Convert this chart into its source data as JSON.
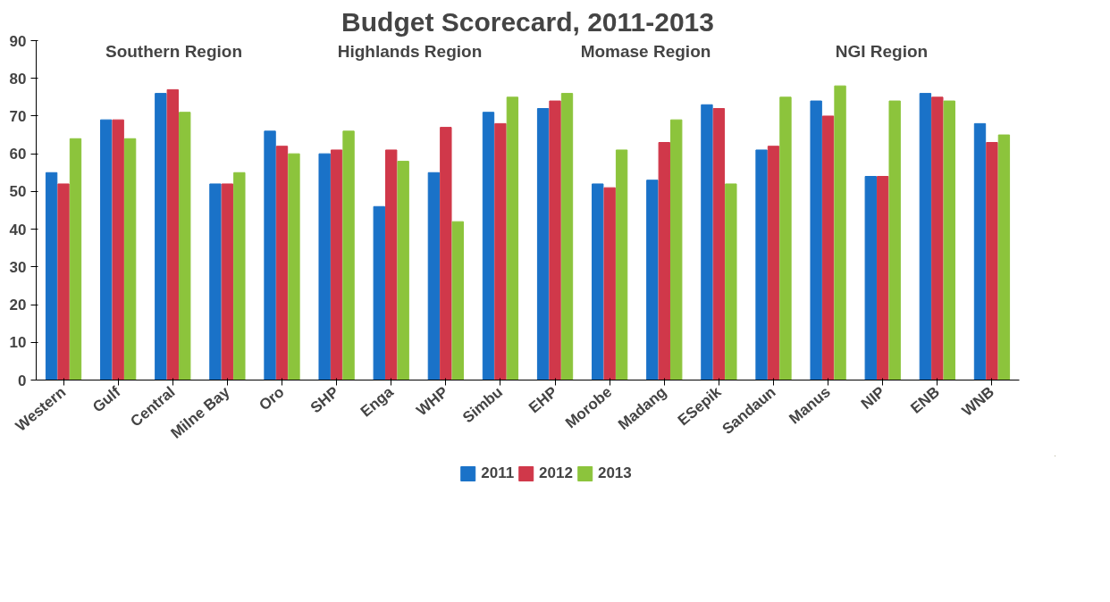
{
  "chart_data": {
    "type": "bar",
    "title": "Budget Scorecard, 2011-2013",
    "categories": [
      "Western",
      "Gulf",
      "Central",
      "Milne Bay",
      "Oro",
      "SHP",
      "Enga",
      "WHP",
      "Simbu",
      "EHP",
      "Morobe",
      "Madang",
      "ESepik",
      "Sandaun",
      "Manus",
      "NIP",
      "ENB",
      "WNB"
    ],
    "series": [
      {
        "name": "2011",
        "color": "#1a72c8",
        "values": [
          55,
          69,
          76,
          52,
          66,
          60,
          46,
          55,
          71,
          72,
          52,
          53,
          73,
          61,
          74,
          54,
          76,
          68
        ]
      },
      {
        "name": "2012",
        "color": "#d0384a",
        "values": [
          52,
          69,
          77,
          52,
          62,
          61,
          61,
          67,
          68,
          74,
          51,
          63,
          72,
          62,
          70,
          54,
          75,
          63
        ]
      },
      {
        "name": "2013",
        "color": "#8cc43c",
        "values": [
          64,
          64,
          71,
          55,
          60,
          66,
          58,
          42,
          75,
          76,
          61,
          69,
          52,
          75,
          78,
          74,
          74,
          65
        ]
      }
    ],
    "ylim": [
      0,
      90
    ],
    "yticks": [
      0,
      10,
      20,
      30,
      40,
      50,
      60,
      70,
      80,
      90
    ],
    "grid": false,
    "legend": "bottom",
    "annotations": [
      "Southern Region",
      "Highlands Region",
      "Momase Region",
      "NGI Region"
    ]
  }
}
